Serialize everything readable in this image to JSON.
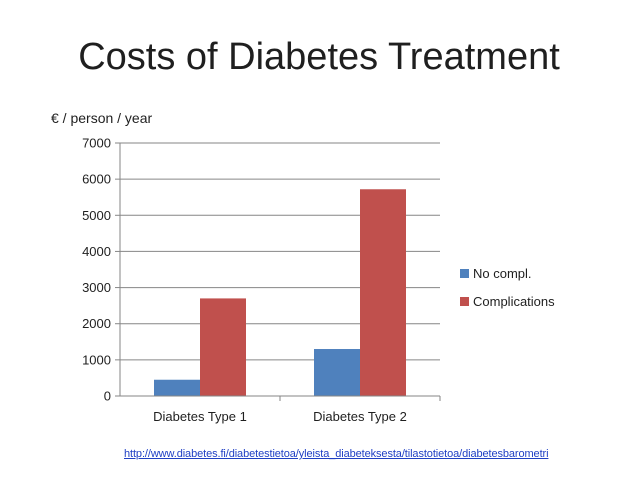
{
  "page": {
    "title": "Costs of Diabetes Treatment",
    "unit_label": "€ / person / year",
    "source_link": "http://www.diabetes.fi/diabetestietoa/yleista_diabeteksesta/tilastotietoa/diabetesbarometri"
  },
  "chart_data": {
    "type": "bar",
    "title": "Costs of Diabetes Treatment",
    "ylabel": "€ / person / year",
    "xlabel": "",
    "categories": [
      "Diabetes Type 1",
      "Diabetes Type 2"
    ],
    "series": [
      {
        "name": "No compl.",
        "values": [
          450,
          1300
        ],
        "color": "#4f81bd"
      },
      {
        "name": "Complications",
        "values": [
          2700,
          5720
        ],
        "color": "#c0504d"
      }
    ],
    "ylim": [
      0,
      7000
    ],
    "yticks": [
      0,
      1000,
      2000,
      3000,
      4000,
      5000,
      6000,
      7000
    ],
    "grid": true,
    "legend_position": "right"
  }
}
